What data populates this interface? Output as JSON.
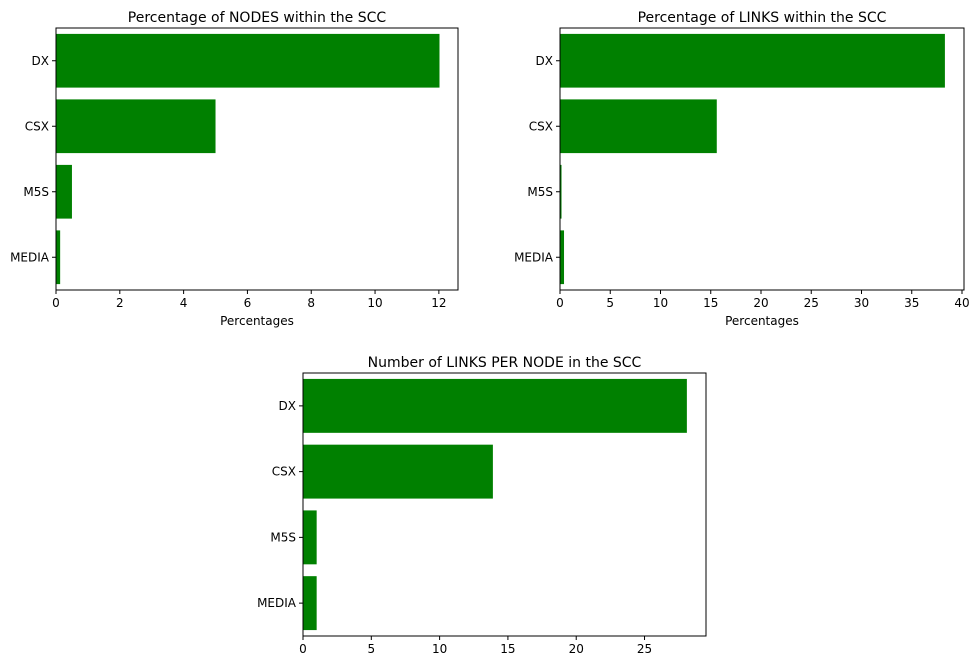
{
  "colors": {
    "bar": "#008000",
    "axis": "#000000",
    "background": "#ffffff"
  },
  "chart_data": [
    {
      "type": "bar",
      "orientation": "horizontal",
      "title": "Percentage of NODES within the SCC",
      "xlabel": "Percentages",
      "ylabel": "",
      "categories": [
        "DX",
        "CSX",
        "M5S",
        "MEDIA"
      ],
      "values": [
        12.02,
        5.0,
        0.5,
        0.13
      ],
      "xlim": [
        0,
        12.6
      ],
      "xticks": [
        0,
        2,
        4,
        6,
        8,
        10,
        12
      ],
      "grid": false
    },
    {
      "type": "bar",
      "orientation": "horizontal",
      "title": "Percentage of LINKS within the SCC",
      "xlabel": "Percentages",
      "ylabel": "",
      "categories": [
        "DX",
        "CSX",
        "M5S",
        "MEDIA"
      ],
      "values": [
        38.3,
        15.6,
        0.15,
        0.4
      ],
      "xlim": [
        0,
        40.2
      ],
      "xticks": [
        0,
        5,
        10,
        15,
        20,
        25,
        30,
        35,
        40
      ],
      "grid": false
    },
    {
      "type": "bar",
      "orientation": "horizontal",
      "title": "Number of LINKS PER NODE in the SCC",
      "xlabel": "",
      "ylabel": "",
      "categories": [
        "DX",
        "CSX",
        "M5S",
        "MEDIA"
      ],
      "values": [
        28.1,
        13.9,
        1.0,
        1.0
      ],
      "xlim": [
        0,
        29.5
      ],
      "xticks": [
        0,
        5,
        10,
        15,
        20,
        25
      ],
      "grid": false
    }
  ]
}
